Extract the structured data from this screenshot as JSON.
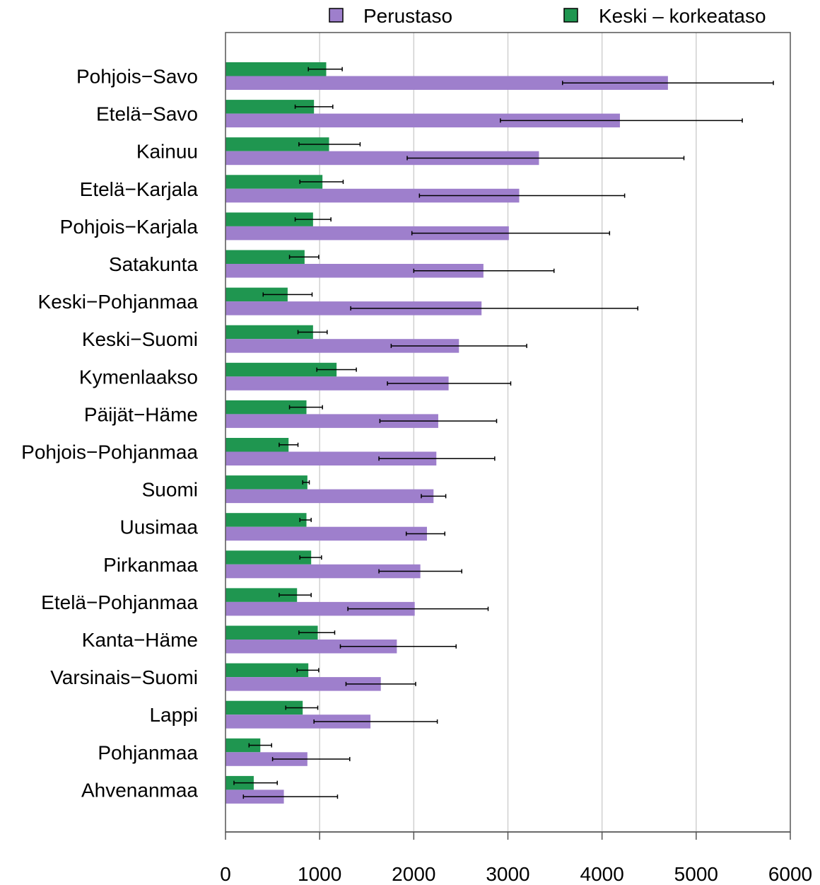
{
  "chart_data": {
    "type": "bar",
    "orientation": "horizontal",
    "categories": [
      "Pohjois−Savo",
      "Etelä−Savo",
      "Kainuu",
      "Etelä−Karjala",
      "Pohjois−Karjala",
      "Satakunta",
      "Keski−Pohjanmaa",
      "Keski−Suomi",
      "Kymenlaakso",
      "Päijät−Häme",
      "Pohjois−Pohjanmaa",
      "Suomi",
      "Uusimaa",
      "Pirkanmaa",
      "Etelä−Pohjanmaa",
      "Kanta−Häme",
      "Varsinais−Suomi",
      "Lappi",
      "Pohjanmaa",
      "Ahvenanmaa"
    ],
    "series": [
      {
        "name": "Perustaso",
        "color": "#9e7fcc",
        "values": [
          4700,
          4190,
          3330,
          3120,
          3010,
          2740,
          2720,
          2480,
          2370,
          2260,
          2240,
          2210,
          2140,
          2070,
          2010,
          1820,
          1650,
          1540,
          870,
          620
        ],
        "err_low": [
          3580,
          2920,
          1930,
          2060,
          1980,
          2000,
          1330,
          1760,
          1720,
          1640,
          1630,
          2080,
          1920,
          1630,
          1300,
          1220,
          1280,
          940,
          500,
          190
        ],
        "err_high": [
          5820,
          5490,
          4870,
          4240,
          4080,
          3490,
          4380,
          3200,
          3030,
          2880,
          2860,
          2340,
          2330,
          2510,
          2790,
          2450,
          2020,
          2250,
          1320,
          1190
        ]
      },
      {
        "name": "Keski – korkeataso",
        "color": "#1f9650",
        "values": [
          1070,
          940,
          1100,
          1030,
          930,
          840,
          660,
          930,
          1180,
          860,
          670,
          870,
          860,
          910,
          760,
          980,
          880,
          820,
          370,
          300
        ],
        "err_low": [
          880,
          740,
          780,
          790,
          740,
          680,
          400,
          770,
          970,
          680,
          570,
          820,
          790,
          790,
          570,
          780,
          760,
          640,
          250,
          90
        ],
        "err_high": [
          1240,
          1140,
          1430,
          1250,
          1120,
          990,
          920,
          1080,
          1390,
          1030,
          770,
          890,
          910,
          1020,
          910,
          1160,
          990,
          980,
          490,
          550
        ]
      }
    ],
    "xlim": [
      0,
      6000
    ],
    "xticks": [
      "0",
      "1000",
      "2000",
      "3000",
      "4000",
      "5000",
      "6000"
    ],
    "grid": true,
    "legend_position": "top"
  }
}
